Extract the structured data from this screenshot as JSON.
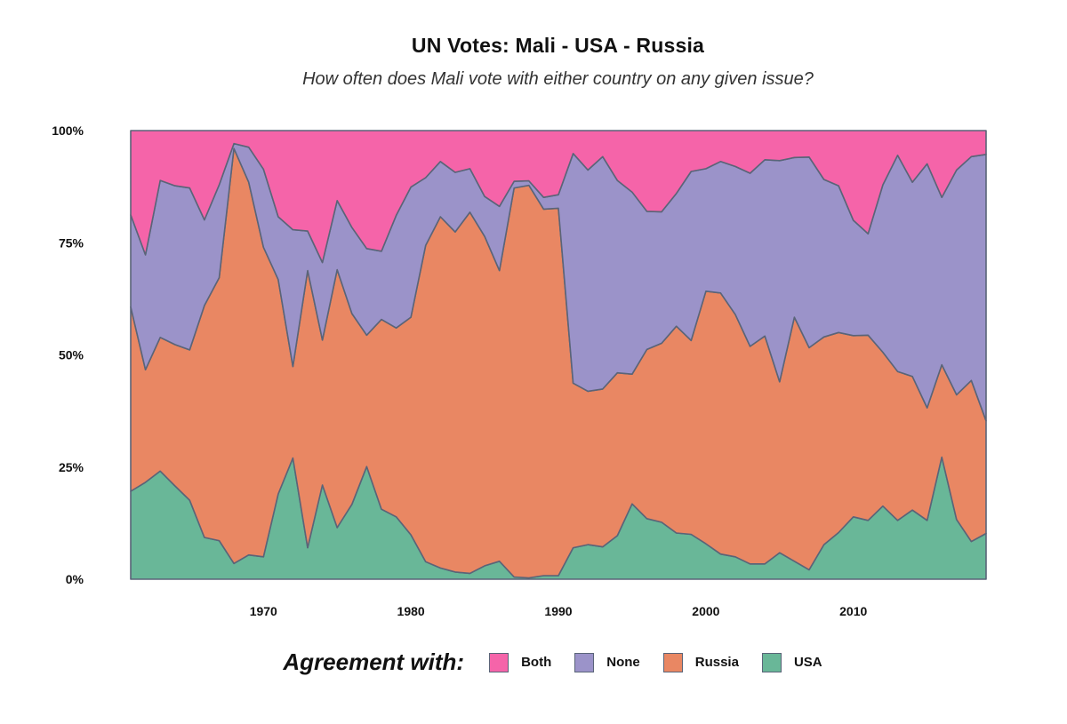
{
  "title": "UN Votes: Mali - USA - Russia",
  "subtitle": "How often does Mali vote with either country on any given issue?",
  "legend": {
    "title": "Agreement with:",
    "items": [
      {
        "label": "Both",
        "color": "#f564a9"
      },
      {
        "label": "None",
        "color": "#9b93c9"
      },
      {
        "label": "Russia",
        "color": "#e98763"
      },
      {
        "label": "USA",
        "color": "#69b798"
      }
    ]
  },
  "chart_data": {
    "type": "area",
    "stacked": true,
    "x": [
      1961,
      1962,
      1963,
      1964,
      1965,
      1966,
      1967,
      1968,
      1969,
      1970,
      1971,
      1972,
      1973,
      1974,
      1975,
      1976,
      1977,
      1978,
      1979,
      1980,
      1981,
      1982,
      1983,
      1984,
      1985,
      1986,
      1987,
      1988,
      1989,
      1990,
      1991,
      1992,
      1993,
      1994,
      1995,
      1996,
      1997,
      1998,
      1999,
      2000,
      2001,
      2002,
      2003,
      2004,
      2005,
      2006,
      2007,
      2008,
      2009,
      2010,
      2011,
      2012,
      2013,
      2014,
      2015,
      2016,
      2017,
      2018,
      2019
    ],
    "xlim": [
      1961,
      2019
    ],
    "xticks": [
      1970,
      1980,
      1990,
      2000,
      2010
    ],
    "ylim": [
      0,
      100
    ],
    "yticks": [
      0,
      25,
      50,
      75,
      100
    ],
    "ytick_labels": [
      "0%",
      "25%",
      "50%",
      "75%",
      "100%"
    ],
    "series": [
      {
        "name": "USA",
        "color": "#69b798",
        "values": [
          19.6,
          21.6,
          24.1,
          20.8,
          17.6,
          9.3,
          8.6,
          3.5,
          5.4,
          5.0,
          19.0,
          27.0,
          7.0,
          21.0,
          11.5,
          16.7,
          25.1,
          15.6,
          13.9,
          9.9,
          3.9,
          2.5,
          1.6,
          1.3,
          3.0,
          4.0,
          0.5,
          0.3,
          0.8,
          0.8,
          7.0,
          7.7,
          7.2,
          9.7,
          16.8,
          13.5,
          12.7,
          10.3,
          10.0,
          7.9,
          5.6,
          5.0,
          3.4,
          3.4,
          5.9,
          4.0,
          2.1,
          7.7,
          10.4,
          13.9,
          13.1,
          16.3,
          13.1,
          15.4,
          13.1,
          27.2,
          13.3,
          8.4,
          10.2
        ]
      },
      {
        "name": "Russia",
        "color": "#e98763",
        "values": [
          41.1,
          25.1,
          29.8,
          31.5,
          33.5,
          51.7,
          58.6,
          92.5,
          83.1,
          69.0,
          47.8,
          20.4,
          61.8,
          32.3,
          57.5,
          42.5,
          29.3,
          42.3,
          42.1,
          48.5,
          70.5,
          78.3,
          75.8,
          80.5,
          73.4,
          64.8,
          86.7,
          87.5,
          81.7,
          81.9,
          36.7,
          34.2,
          35.2,
          36.3,
          28.9,
          37.7,
          39.9,
          46.1,
          43.2,
          56.3,
          58.2,
          54.0,
          48.5,
          50.8,
          38.1,
          54.4,
          49.5,
          46.3,
          44.6,
          40.4,
          41.3,
          34.3,
          33.2,
          29.8,
          25.1,
          20.6,
          27.8,
          35.9,
          25.1
        ]
      },
      {
        "name": "None",
        "color": "#9b93c9",
        "values": [
          20.5,
          25.6,
          35.0,
          35.4,
          36.1,
          19.1,
          20.7,
          1.1,
          7.8,
          17.4,
          14.0,
          30.5,
          8.8,
          17.3,
          15.4,
          19.2,
          19.3,
          15.2,
          25.1,
          29.0,
          15.1,
          12.3,
          13.3,
          9.7,
          8.9,
          14.3,
          1.5,
          1.0,
          2.6,
          3.0,
          51.2,
          49.3,
          51.8,
          42.9,
          40.6,
          30.8,
          29.3,
          29.6,
          37.7,
          27.3,
          29.3,
          33.0,
          38.6,
          39.3,
          49.3,
          35.6,
          42.5,
          35.1,
          32.7,
          25.7,
          22.6,
          37.3,
          48.2,
          43.3,
          54.4,
          37.3,
          50.1,
          49.9,
          59.4
        ]
      },
      {
        "name": "Both",
        "color": "#f564a9",
        "values": [
          18.8,
          27.7,
          11.1,
          12.3,
          12.8,
          19.9,
          12.1,
          2.9,
          3.7,
          8.6,
          19.2,
          22.1,
          22.4,
          29.4,
          15.6,
          21.6,
          26.3,
          26.9,
          18.9,
          12.6,
          10.5,
          6.9,
          9.3,
          8.5,
          14.7,
          16.9,
          11.3,
          11.2,
          14.9,
          14.3,
          5.1,
          8.8,
          5.8,
          11.1,
          13.7,
          18.0,
          18.1,
          14.0,
          9.1,
          8.5,
          6.9,
          8.0,
          9.5,
          6.5,
          6.7,
          6.0,
          5.9,
          10.9,
          12.3,
          20.0,
          23.0,
          12.1,
          5.5,
          11.5,
          7.4,
          14.9,
          8.8,
          5.8,
          5.3
        ]
      }
    ]
  }
}
